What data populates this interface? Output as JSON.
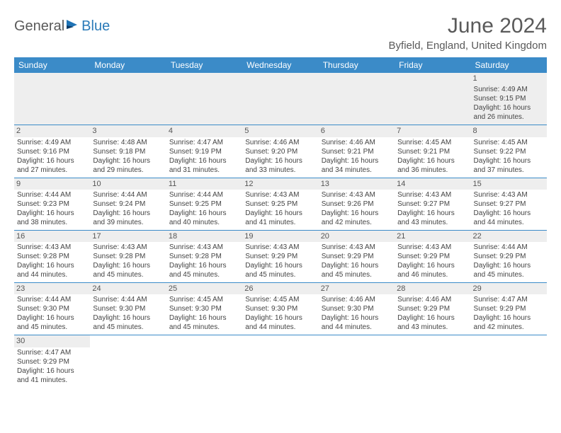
{
  "logo": {
    "text1": "General",
    "text2": "Blue"
  },
  "title": "June 2024",
  "subtitle": "Byfield, England, United Kingdom",
  "colors": {
    "header_bg": "#3b8bc8",
    "header_text": "#ffffff",
    "daynum_bg": "#eeeeee",
    "row_divider": "#3b8bc8",
    "body_text": "#444444",
    "title_text": "#5a5a5a",
    "logo_gray": "#5a5a5a",
    "logo_blue": "#2a7ab8"
  },
  "weekdays": [
    "Sunday",
    "Monday",
    "Tuesday",
    "Wednesday",
    "Thursday",
    "Friday",
    "Saturday"
  ],
  "leading_blanks": 6,
  "days": [
    {
      "n": 1,
      "sunrise": "4:49 AM",
      "sunset": "9:15 PM",
      "daylight": "16 hours and 26 minutes."
    },
    {
      "n": 2,
      "sunrise": "4:49 AM",
      "sunset": "9:16 PM",
      "daylight": "16 hours and 27 minutes."
    },
    {
      "n": 3,
      "sunrise": "4:48 AM",
      "sunset": "9:18 PM",
      "daylight": "16 hours and 29 minutes."
    },
    {
      "n": 4,
      "sunrise": "4:47 AM",
      "sunset": "9:19 PM",
      "daylight": "16 hours and 31 minutes."
    },
    {
      "n": 5,
      "sunrise": "4:46 AM",
      "sunset": "9:20 PM",
      "daylight": "16 hours and 33 minutes."
    },
    {
      "n": 6,
      "sunrise": "4:46 AM",
      "sunset": "9:21 PM",
      "daylight": "16 hours and 34 minutes."
    },
    {
      "n": 7,
      "sunrise": "4:45 AM",
      "sunset": "9:21 PM",
      "daylight": "16 hours and 36 minutes."
    },
    {
      "n": 8,
      "sunrise": "4:45 AM",
      "sunset": "9:22 PM",
      "daylight": "16 hours and 37 minutes."
    },
    {
      "n": 9,
      "sunrise": "4:44 AM",
      "sunset": "9:23 PM",
      "daylight": "16 hours and 38 minutes."
    },
    {
      "n": 10,
      "sunrise": "4:44 AM",
      "sunset": "9:24 PM",
      "daylight": "16 hours and 39 minutes."
    },
    {
      "n": 11,
      "sunrise": "4:44 AM",
      "sunset": "9:25 PM",
      "daylight": "16 hours and 40 minutes."
    },
    {
      "n": 12,
      "sunrise": "4:43 AM",
      "sunset": "9:25 PM",
      "daylight": "16 hours and 41 minutes."
    },
    {
      "n": 13,
      "sunrise": "4:43 AM",
      "sunset": "9:26 PM",
      "daylight": "16 hours and 42 minutes."
    },
    {
      "n": 14,
      "sunrise": "4:43 AM",
      "sunset": "9:27 PM",
      "daylight": "16 hours and 43 minutes."
    },
    {
      "n": 15,
      "sunrise": "4:43 AM",
      "sunset": "9:27 PM",
      "daylight": "16 hours and 44 minutes."
    },
    {
      "n": 16,
      "sunrise": "4:43 AM",
      "sunset": "9:28 PM",
      "daylight": "16 hours and 44 minutes."
    },
    {
      "n": 17,
      "sunrise": "4:43 AM",
      "sunset": "9:28 PM",
      "daylight": "16 hours and 45 minutes."
    },
    {
      "n": 18,
      "sunrise": "4:43 AM",
      "sunset": "9:28 PM",
      "daylight": "16 hours and 45 minutes."
    },
    {
      "n": 19,
      "sunrise": "4:43 AM",
      "sunset": "9:29 PM",
      "daylight": "16 hours and 45 minutes."
    },
    {
      "n": 20,
      "sunrise": "4:43 AM",
      "sunset": "9:29 PM",
      "daylight": "16 hours and 45 minutes."
    },
    {
      "n": 21,
      "sunrise": "4:43 AM",
      "sunset": "9:29 PM",
      "daylight": "16 hours and 46 minutes."
    },
    {
      "n": 22,
      "sunrise": "4:44 AM",
      "sunset": "9:29 PM",
      "daylight": "16 hours and 45 minutes."
    },
    {
      "n": 23,
      "sunrise": "4:44 AM",
      "sunset": "9:30 PM",
      "daylight": "16 hours and 45 minutes."
    },
    {
      "n": 24,
      "sunrise": "4:44 AM",
      "sunset": "9:30 PM",
      "daylight": "16 hours and 45 minutes."
    },
    {
      "n": 25,
      "sunrise": "4:45 AM",
      "sunset": "9:30 PM",
      "daylight": "16 hours and 45 minutes."
    },
    {
      "n": 26,
      "sunrise": "4:45 AM",
      "sunset": "9:30 PM",
      "daylight": "16 hours and 44 minutes."
    },
    {
      "n": 27,
      "sunrise": "4:46 AM",
      "sunset": "9:30 PM",
      "daylight": "16 hours and 44 minutes."
    },
    {
      "n": 28,
      "sunrise": "4:46 AM",
      "sunset": "9:29 PM",
      "daylight": "16 hours and 43 minutes."
    },
    {
      "n": 29,
      "sunrise": "4:47 AM",
      "sunset": "9:29 PM",
      "daylight": "16 hours and 42 minutes."
    },
    {
      "n": 30,
      "sunrise": "4:47 AM",
      "sunset": "9:29 PM",
      "daylight": "16 hours and 41 minutes."
    }
  ],
  "labels": {
    "sunrise": "Sunrise:",
    "sunset": "Sunset:",
    "daylight": "Daylight:"
  }
}
